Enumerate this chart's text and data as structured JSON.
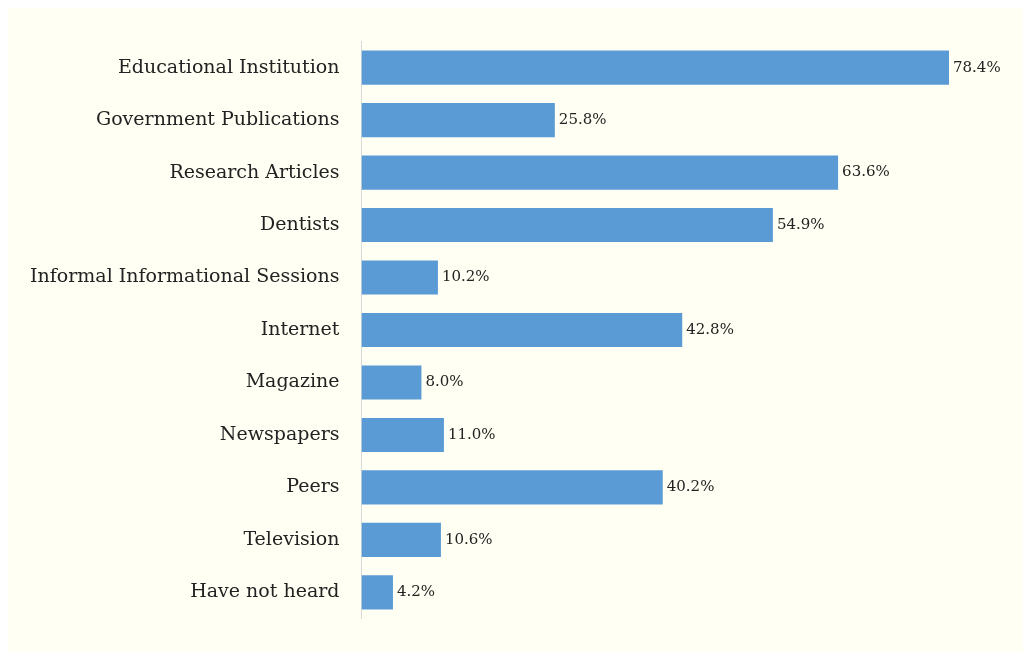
{
  "chart_data": {
    "type": "bar",
    "orientation": "horizontal",
    "categories": [
      "Educational Institution",
      "Government Publications",
      "Research Articles",
      "Dentists",
      "Informal Informational Sessions",
      "Internet",
      "Magazine",
      "Newspapers",
      "Peers",
      "Television",
      "Have not heard"
    ],
    "values": [
      78.4,
      25.8,
      63.6,
      54.9,
      10.2,
      42.8,
      8.0,
      11.0,
      40.2,
      10.6,
      4.2
    ],
    "value_labels": [
      "78.4%",
      "25.8%",
      "63.6%",
      "54.9%",
      "10.2%",
      "42.8%",
      "8.0%",
      "11.0%",
      "40.2%",
      "10.6%",
      "4.2%"
    ],
    "color": "#5b9bd5",
    "legend": false
  }
}
